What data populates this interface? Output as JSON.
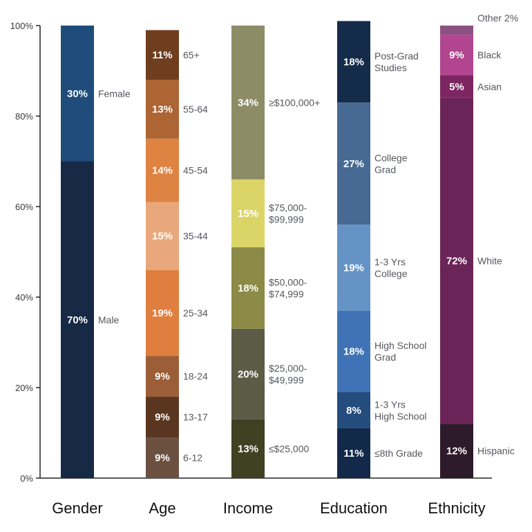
{
  "chart_data": {
    "type": "bar",
    "stacked": true,
    "yaxis": {
      "ylim": [
        0,
        100
      ],
      "ticks": [
        0,
        20,
        40,
        60,
        80,
        100
      ],
      "tick_labels": [
        "0%",
        "20%",
        "40%",
        "60%",
        "80%",
        "100%"
      ]
    },
    "categories": [
      {
        "name": "Gender",
        "segments": [
          {
            "value": 70,
            "pct_label": "70%",
            "label": [
              "Male"
            ],
            "color": "#172a45"
          },
          {
            "value": 30,
            "pct_label": "30%",
            "label": [
              "Female"
            ],
            "color": "#1f4c7a"
          }
        ]
      },
      {
        "name": "Age",
        "segments": [
          {
            "value": 9,
            "pct_label": "9%",
            "label": [
              "6-12"
            ],
            "color": "#6b5040"
          },
          {
            "value": 9,
            "pct_label": "9%",
            "label": [
              "13-17"
            ],
            "color": "#5a3620"
          },
          {
            "value": 9,
            "pct_label": "9%",
            "label": [
              "18-24"
            ],
            "color": "#9c5e36"
          },
          {
            "value": 19,
            "pct_label": "19%",
            "label": [
              "25-34"
            ],
            "color": "#e07e3f"
          },
          {
            "value": 15,
            "pct_label": "15%",
            "label": [
              "35-44"
            ],
            "color": "#e8a87c"
          },
          {
            "value": 14,
            "pct_label": "14%",
            "label": [
              "45-54"
            ],
            "color": "#df8343"
          },
          {
            "value": 13,
            "pct_label": "13%",
            "label": [
              "55-64"
            ],
            "color": "#ad6534"
          },
          {
            "value": 11,
            "pct_label": "11%",
            "label": [
              "65+"
            ],
            "color": "#6e3e1e"
          }
        ]
      },
      {
        "name": "Income",
        "segments": [
          {
            "value": 13,
            "pct_label": "13%",
            "label": [
              "≤$25,000"
            ],
            "color": "#3f4222"
          },
          {
            "value": 20,
            "pct_label": "20%",
            "label": [
              "$25,000-",
              "$49,999"
            ],
            "color": "#5b5b46"
          },
          {
            "value": 18,
            "pct_label": "18%",
            "label": [
              "$50,000-",
              "$74,999"
            ],
            "color": "#8b8a46"
          },
          {
            "value": 15,
            "pct_label": "15%",
            "label": [
              "$75,000-",
              "$99,999"
            ],
            "color": "#dbd568"
          },
          {
            "value": 34,
            "pct_label": "34%",
            "label": [
              "≥$100,000+"
            ],
            "color": "#8c8d66"
          }
        ]
      },
      {
        "name": "Education",
        "segments": [
          {
            "value": 11,
            "pct_label": "11%",
            "label": [
              "≤8th Grade"
            ],
            "color": "#13294a"
          },
          {
            "value": 8,
            "pct_label": "8%",
            "label": [
              "1-3 Yrs",
              "High School"
            ],
            "color": "#244c7c"
          },
          {
            "value": 18,
            "pct_label": "18%",
            "label": [
              "High School",
              "Grad"
            ],
            "color": "#3f73b6"
          },
          {
            "value": 19,
            "pct_label": "19%",
            "label": [
              "1-3 Yrs",
              "College"
            ],
            "color": "#6593c6"
          },
          {
            "value": 27,
            "pct_label": "27%",
            "label": [
              "College",
              "Grad"
            ],
            "color": "#466a92"
          },
          {
            "value": 18,
            "pct_label": "18%",
            "label": [
              "Post-Grad",
              "Studies"
            ],
            "color": "#152b4a"
          }
        ]
      },
      {
        "name": "Ethnicity",
        "segments": [
          {
            "value": 12,
            "pct_label": "12%",
            "label": [
              "Hispanic"
            ],
            "color": "#2d1a2a"
          },
          {
            "value": 72,
            "pct_label": "72%",
            "label": [
              "White"
            ],
            "color": "#6b2457"
          },
          {
            "value": 5,
            "pct_label": "5%",
            "label": [
              "Asian"
            ],
            "color": "#7c2561"
          },
          {
            "value": 9,
            "pct_label": "9%",
            "label": [
              "Black"
            ],
            "color": "#b14590"
          },
          {
            "value": 2,
            "pct_label": "",
            "label": [
              "Other 2%"
            ],
            "color": "#8a5280"
          }
        ]
      }
    ]
  }
}
